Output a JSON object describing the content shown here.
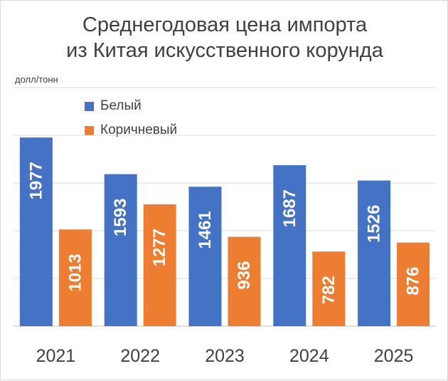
{
  "chart_data": {
    "type": "bar",
    "title_line1": "Среднегодовая цена импорта",
    "title_line2": "из Китая искусственного корунда",
    "ylabel": "долл/тонн",
    "categories": [
      "2021",
      "2022",
      "2023",
      "2024",
      "2025"
    ],
    "series": [
      {
        "name": "Белый",
        "color": "#4472C4",
        "values": [
          1977,
          1593,
          1461,
          1687,
          1526
        ]
      },
      {
        "name": "Коричневый",
        "color": "#ED7D31",
        "values": [
          1013,
          1277,
          936,
          782,
          876
        ]
      }
    ],
    "ylim": [
      0,
      2500
    ],
    "grid": true,
    "legend": "top-left"
  }
}
